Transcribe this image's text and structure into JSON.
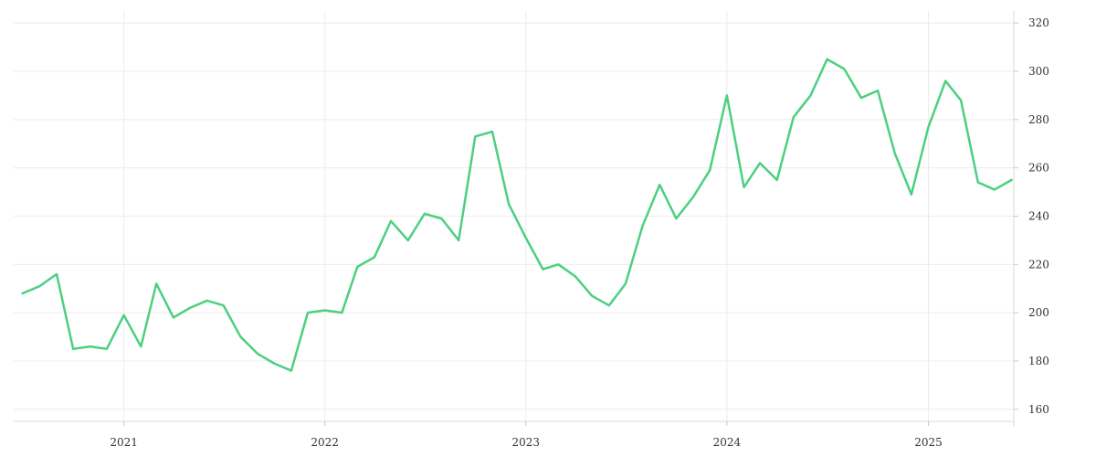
{
  "chart_data": {
    "type": "line",
    "title": "",
    "xlabel": "",
    "ylabel": "",
    "x_ticks": [
      "2021",
      "2022",
      "2023",
      "2024",
      "2025"
    ],
    "y_ticks": [
      160,
      180,
      200,
      220,
      240,
      260,
      280,
      300,
      320
    ],
    "xlim": [
      "2020-06-15",
      "2025-06-05"
    ],
    "ylim": [
      155,
      325
    ],
    "grid": true,
    "y_axis_side": "right",
    "colors": {
      "line": "#4cd080"
    },
    "series": [
      {
        "x": [
          "2020-07-01",
          "2020-08-01",
          "2020-09-01",
          "2020-10-01",
          "2020-11-01",
          "2020-12-01",
          "2021-01-01",
          "2021-02-01",
          "2021-03-01",
          "2021-04-01",
          "2021-05-01",
          "2021-06-01",
          "2021-07-01",
          "2021-08-01",
          "2021-09-01",
          "2021-10-01",
          "2021-11-01",
          "2021-12-01",
          "2022-01-01",
          "2022-02-01",
          "2022-03-01",
          "2022-04-01",
          "2022-05-01",
          "2022-06-01",
          "2022-07-01",
          "2022-08-01",
          "2022-09-01",
          "2022-10-01",
          "2022-11-01",
          "2022-12-01",
          "2023-01-01",
          "2023-02-01",
          "2023-03-01",
          "2023-04-01",
          "2023-05-01",
          "2023-06-01",
          "2023-07-01",
          "2023-08-01",
          "2023-09-01",
          "2023-10-01",
          "2023-11-01",
          "2023-12-01",
          "2024-01-01",
          "2024-02-01",
          "2024-03-01",
          "2024-04-01",
          "2024-05-01",
          "2024-06-01",
          "2024-07-01",
          "2024-08-01",
          "2024-09-01",
          "2024-10-01",
          "2024-11-01",
          "2024-12-01",
          "2025-01-01",
          "2025-02-01",
          "2025-03-01",
          "2025-04-01",
          "2025-05-01",
          "2025-06-01"
        ],
        "values": [
          208,
          211,
          216,
          185,
          186,
          185,
          199,
          186,
          212,
          198,
          202,
          205,
          203,
          190,
          183,
          179,
          176,
          200,
          201,
          200,
          219,
          223,
          238,
          230,
          241,
          239,
          230,
          273,
          275,
          245,
          231,
          218,
          220,
          215,
          207,
          203,
          212,
          236,
          253,
          239,
          248,
          259,
          290,
          252,
          262,
          255,
          281,
          290,
          305,
          301,
          289,
          292,
          266,
          249,
          277,
          296,
          288,
          254,
          251,
          255
        ]
      }
    ]
  }
}
